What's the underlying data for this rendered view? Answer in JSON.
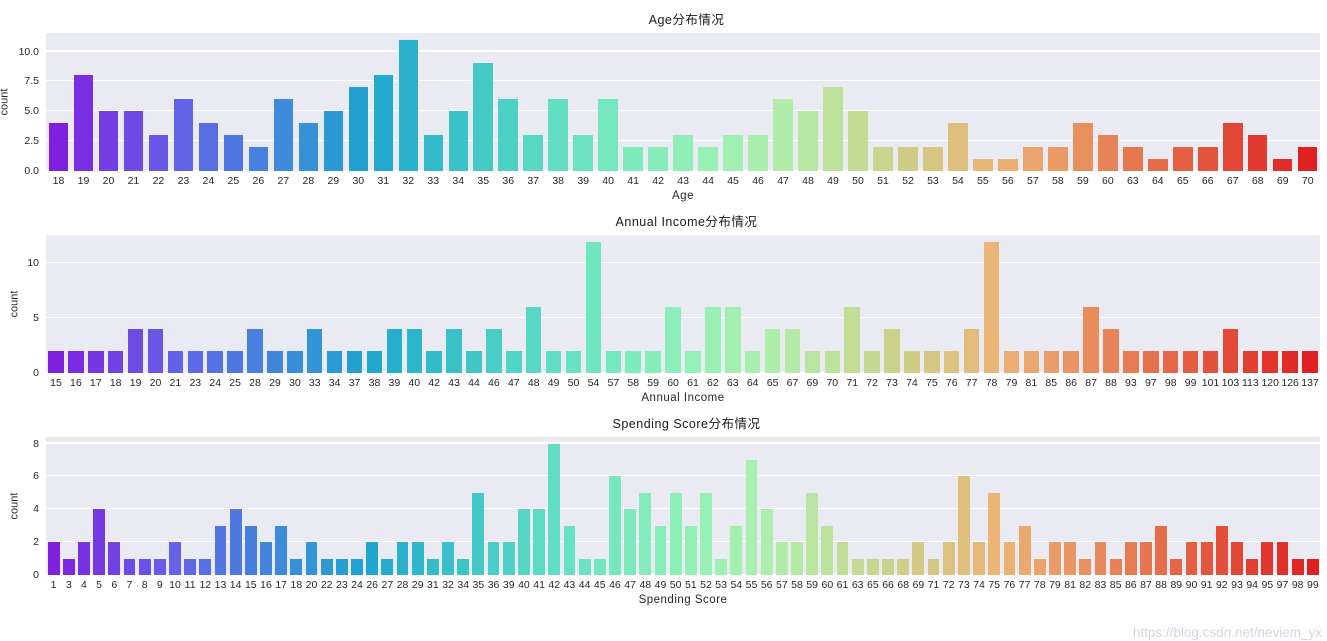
{
  "page": {
    "watermark": "https://blog.csdn.net/neviem_yx",
    "background": "#ffffff"
  },
  "style": {
    "axes_background": "#eaeaf2",
    "grid_color": "#ffffff",
    "text_color": "#262626",
    "palette": "rainbow (purple→blue→cyan→green→tan→red), seaborn desaturation 0.75"
  },
  "chart_data": [
    {
      "type": "bar",
      "title": "Age分布情况",
      "xlabel": "Age",
      "ylabel": "count",
      "grid": true,
      "legend": false,
      "ylim": [
        0,
        11.55
      ],
      "ytick_values": [
        0,
        2.5,
        5,
        7.5,
        10
      ],
      "ytick_labels": [
        "0.0",
        "2.5",
        "5.0",
        "7.5",
        "10.0"
      ],
      "categories": [
        "18",
        "19",
        "20",
        "21",
        "22",
        "23",
        "24",
        "25",
        "26",
        "27",
        "28",
        "29",
        "30",
        "31",
        "32",
        "33",
        "34",
        "35",
        "36",
        "37",
        "38",
        "39",
        "40",
        "41",
        "42",
        "43",
        "44",
        "45",
        "46",
        "47",
        "48",
        "49",
        "50",
        "51",
        "52",
        "53",
        "54",
        "55",
        "56",
        "57",
        "58",
        "59",
        "60",
        "63",
        "64",
        "65",
        "66",
        "67",
        "68",
        "69",
        "70"
      ],
      "values": [
        4,
        8,
        5,
        5,
        3,
        6,
        4,
        3,
        2,
        6,
        4,
        5,
        7,
        8,
        11,
        3,
        5,
        9,
        6,
        3,
        6,
        3,
        6,
        2,
        2,
        3,
        2,
        3,
        3,
        6,
        5,
        7,
        5,
        2,
        2,
        2,
        4,
        1,
        1,
        2,
        2,
        4,
        3,
        2,
        1,
        2,
        2,
        4,
        3,
        1,
        2
      ]
    },
    {
      "type": "bar",
      "title": "Annual Income分布情况",
      "xlabel": "Annual Income",
      "ylabel": "count",
      "grid": true,
      "legend": false,
      "ylim": [
        0,
        12.6
      ],
      "ytick_values": [
        0,
        5,
        10
      ],
      "ytick_labels": [
        "0",
        "5",
        "10"
      ],
      "categories": [
        "15",
        "16",
        "17",
        "18",
        "19",
        "20",
        "21",
        "23",
        "24",
        "25",
        "28",
        "29",
        "30",
        "33",
        "34",
        "37",
        "38",
        "39",
        "40",
        "42",
        "43",
        "44",
        "46",
        "47",
        "48",
        "49",
        "50",
        "54",
        "57",
        "58",
        "59",
        "60",
        "61",
        "62",
        "63",
        "64",
        "65",
        "67",
        "69",
        "70",
        "71",
        "72",
        "73",
        "74",
        "75",
        "76",
        "77",
        "78",
        "79",
        "81",
        "85",
        "86",
        "87",
        "88",
        "93",
        "97",
        "98",
        "99",
        "101",
        "103",
        "113",
        "120",
        "126",
        "137"
      ],
      "values": [
        2,
        2,
        2,
        2,
        4,
        4,
        2,
        2,
        2,
        2,
        4,
        2,
        2,
        4,
        2,
        2,
        2,
        4,
        4,
        2,
        4,
        2,
        4,
        2,
        6,
        2,
        2,
        12,
        2,
        2,
        2,
        6,
        2,
        6,
        6,
        2,
        4,
        4,
        2,
        2,
        6,
        2,
        4,
        2,
        2,
        2,
        4,
        12,
        2,
        2,
        2,
        2,
        6,
        4,
        2,
        2,
        2,
        2,
        2,
        4,
        2,
        2,
        2,
        2
      ]
    },
    {
      "type": "bar",
      "title": "Spending Score分布情况",
      "xlabel": "Spending Score",
      "ylabel": "count",
      "grid": true,
      "legend": false,
      "ylim": [
        0,
        8.4
      ],
      "ytick_values": [
        0,
        2,
        4,
        6,
        8
      ],
      "ytick_labels": [
        "0",
        "2",
        "4",
        "6",
        "8"
      ],
      "categories": [
        "1",
        "3",
        "4",
        "5",
        "6",
        "7",
        "8",
        "9",
        "10",
        "11",
        "12",
        "13",
        "14",
        "15",
        "16",
        "17",
        "18",
        "20",
        "22",
        "23",
        "24",
        "26",
        "27",
        "28",
        "29",
        "31",
        "32",
        "34",
        "35",
        "36",
        "39",
        "40",
        "41",
        "42",
        "43",
        "44",
        "45",
        "46",
        "47",
        "48",
        "49",
        "50",
        "51",
        "52",
        "53",
        "54",
        "55",
        "56",
        "57",
        "58",
        "59",
        "60",
        "61",
        "63",
        "65",
        "66",
        "68",
        "69",
        "71",
        "72",
        "73",
        "74",
        "75",
        "76",
        "77",
        "78",
        "79",
        "81",
        "82",
        "83",
        "85",
        "86",
        "87",
        "88",
        "89",
        "90",
        "91",
        "92",
        "93",
        "94",
        "95",
        "97",
        "98",
        "99"
      ],
      "values": [
        2,
        1,
        2,
        4,
        2,
        1,
        1,
        1,
        2,
        1,
        1,
        3,
        4,
        3,
        2,
        3,
        1,
        2,
        1,
        1,
        1,
        2,
        1,
        2,
        2,
        1,
        2,
        1,
        5,
        2,
        2,
        4,
        4,
        8,
        3,
        1,
        1,
        6,
        4,
        5,
        3,
        5,
        3,
        5,
        1,
        3,
        7,
        4,
        2,
        2,
        5,
        3,
        2,
        1,
        1,
        1,
        1,
        2,
        1,
        2,
        6,
        2,
        5,
        2,
        3,
        1,
        2,
        2,
        1,
        2,
        1,
        2,
        2,
        3,
        1,
        2,
        2,
        3,
        2,
        1,
        2,
        2,
        1,
        1
      ]
    }
  ]
}
